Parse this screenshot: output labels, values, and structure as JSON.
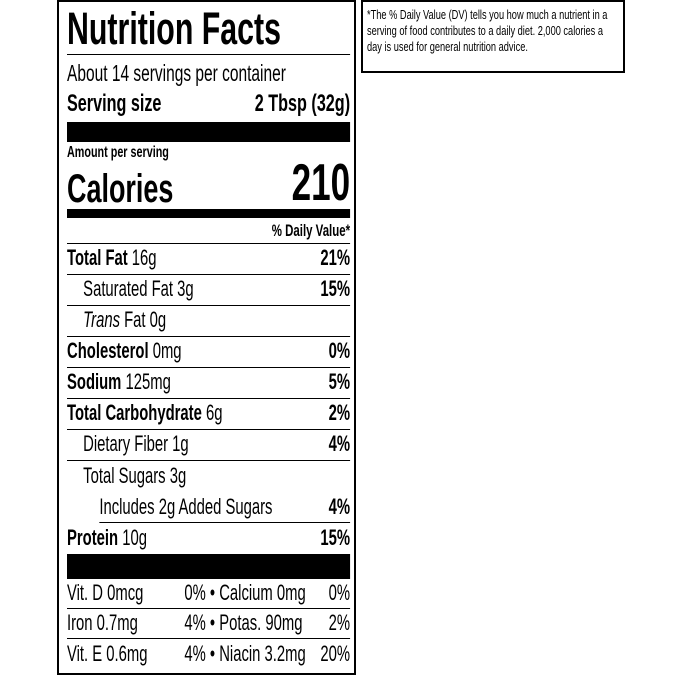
{
  "title": "Nutrition Facts",
  "servings_per_container": "About 14 servings per container",
  "serving_size": {
    "label": "Serving size",
    "value": "2 Tbsp (32g)"
  },
  "amount_per_serving": "Amount per serving",
  "calories": {
    "label": "Calories",
    "value": "210"
  },
  "daily_value_header": "% Daily Value*",
  "nutrients": [
    {
      "name": "Total Fat",
      "amount": "16g",
      "dv": "21%"
    },
    {
      "name": "Saturated Fat",
      "amount": "3g",
      "dv": "15%"
    },
    {
      "name": "Trans",
      "name_suffix": " Fat",
      "amount": "0g",
      "dv": ""
    },
    {
      "name": "Cholesterol",
      "amount": "0mg",
      "dv": "0%"
    },
    {
      "name": "Sodium",
      "amount": "125mg",
      "dv": "5%"
    },
    {
      "name": "Total Carbohydrate",
      "amount": "6g",
      "dv": "2%"
    },
    {
      "name": "Dietary Fiber",
      "amount": "1g",
      "dv": "4%"
    },
    {
      "name": "Total Sugars",
      "amount": "3g",
      "dv": ""
    },
    {
      "name": "Includes 2g Added Sugars",
      "amount": "",
      "dv": "4%"
    },
    {
      "name": "Protein",
      "amount": "10g",
      "dv": "15%"
    }
  ],
  "vitamins": [
    [
      {
        "name": "Vit. D 0mcg",
        "dv": "0%"
      },
      {
        "name": "Calcium 0mg",
        "dv": "0%"
      }
    ],
    [
      {
        "name": "Iron 0.7mg",
        "dv": "4%"
      },
      {
        "name": "Potas. 90mg",
        "dv": "2%"
      }
    ],
    [
      {
        "name": "Vit. E 0.6mg",
        "dv": "4%"
      },
      {
        "name": "Niacin 3.2mg",
        "dv": "20%"
      }
    ]
  ],
  "bullet": "•",
  "footnote": "*The % Daily Value (DV) tells you how much a nutrient in a serving of food contributes to a daily diet. 2,000 calories a day is used for general nutrition advice."
}
